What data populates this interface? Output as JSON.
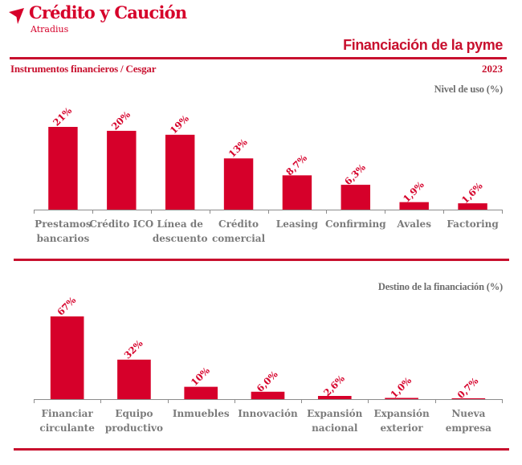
{
  "header": {
    "brand": "Crédito y Caución",
    "sub_brand": "Atradius",
    "report_title": "Financiación de la pyme",
    "section_title": "Instrumentos financieros / Cesgar",
    "year": "2023",
    "logo_icon": "arrow-bird-logo-icon",
    "accent_color": "#d6002a"
  },
  "chart_data": [
    {
      "type": "bar",
      "title": "Nivel de uso (%)",
      "xlabel": "",
      "ylabel": "",
      "ylim": [
        0,
        21
      ],
      "grid": false,
      "categories": [
        [
          "Prestamos",
          "bancarios"
        ],
        [
          "Crédito ICO"
        ],
        [
          "Línea de",
          "descuento"
        ],
        [
          "Crédito",
          "comercial"
        ],
        [
          "Leasing"
        ],
        [
          "Confirming"
        ],
        [
          "Avales"
        ],
        [
          "Factoring"
        ]
      ],
      "values": [
        21,
        20,
        19,
        13,
        8.7,
        6.3,
        1.9,
        1.6
      ],
      "data_labels": [
        "21%",
        "20%",
        "19%",
        "13%",
        "8,7%",
        "6,3%",
        "1,9%",
        "1,6%"
      ],
      "color": "#d6002a"
    },
    {
      "type": "bar",
      "title": "Destino de la financiación (%)",
      "xlabel": "",
      "ylabel": "",
      "ylim": [
        0,
        67
      ],
      "grid": false,
      "categories": [
        [
          "Financiar",
          "circulante"
        ],
        [
          "Equipo",
          "productivo"
        ],
        [
          "Inmuebles"
        ],
        [
          "Innovación"
        ],
        [
          "Expansión",
          "nacional"
        ],
        [
          "Expansión",
          "exterior"
        ],
        [
          "Nueva",
          "empresa"
        ]
      ],
      "values": [
        67,
        32,
        10,
        6.0,
        2.6,
        1.0,
        0.7
      ],
      "data_labels": [
        "67%",
        "32%",
        "10%",
        "6,0%",
        "2,6%",
        "1,0%",
        "0,7%"
      ],
      "color": "#d6002a"
    }
  ]
}
